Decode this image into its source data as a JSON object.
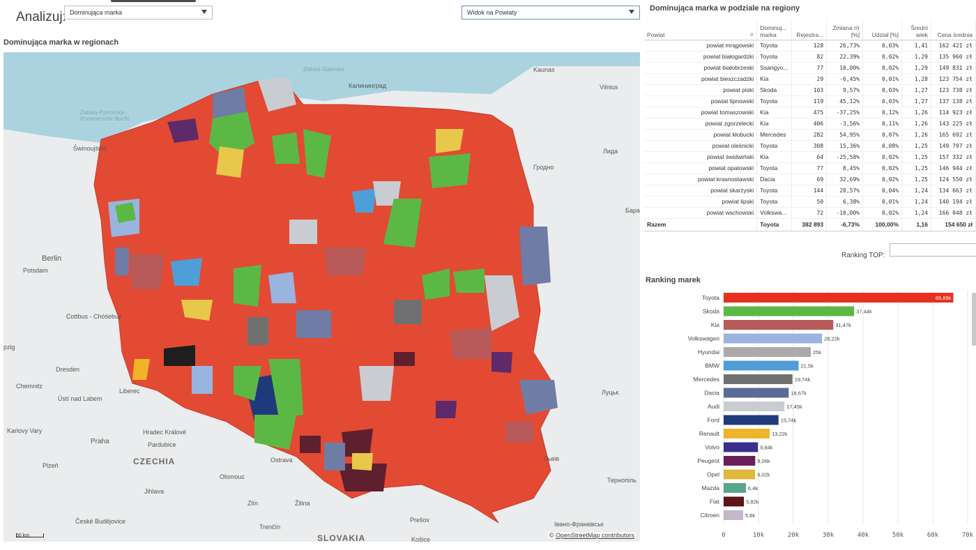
{
  "header": {
    "analyze_label": "Analizuj:",
    "select_measure": "Dominująca marka",
    "select_view": "Widok na Powiaty"
  },
  "map": {
    "title": "Dominująca marka w regionach",
    "labels": {
      "kaunas": "Kaunas",
      "vilnius": "Vilnius",
      "kaliningrad": "Калининград",
      "zatoka": "Zatoka Gdańska",
      "zatoka2": "Калининград",
      "pomeranian": "Zatoka Pomorska - Pommersche Bucht",
      "swinoujscie": "Świnoujście",
      "lida": "Лида",
      "grodno": "Гродно",
      "berlin": "Berlin",
      "potsdam": "Potsdam",
      "cottbus": "Cottbus - Chóśebuz",
      "leipzig": "pzig",
      "dresden": "Dresden",
      "chemnitz": "Chemnitz",
      "usti": "Ústí nad Labem",
      "liberec": "Liberec",
      "karlovy": "Karlovy Vary",
      "praha": "Praha",
      "hradec": "Hradec Králové",
      "pardubice": "Pardubice",
      "czechia": "CZECHIA",
      "plzen": "Plzeň",
      "olomouc": "Olomouc",
      "ostrava": "Ostrava",
      "jihlava": "Jihlava",
      "zlin": "Zlín",
      "zilina": "Žilina",
      "budejovice": "České Budějovice",
      "trencin": "Trenčín",
      "slovakia": "SLOVAKIA",
      "kosice": "Košice",
      "presov": "Prešov",
      "lutsk": "Луцьк",
      "lviv": "Львів",
      "ternopil": "Тернопіль",
      "ivano": "Івано-Франківськ",
      "bara": "Бара"
    },
    "scale": "50 km",
    "attribution_prefix": "© ",
    "attribution_link": "OpenStreetMap contributors"
  },
  "table": {
    "title": "Dominująca marka w podziale na regiony",
    "headers": [
      "Powiat",
      "Dominuj... marka",
      "Rejestra...",
      "Zmiana r/r [%]",
      "Udział [%]",
      "Średni wiek",
      "Cena średnia"
    ],
    "rows": [
      [
        "powiat mrągowski",
        "Toyota",
        "128",
        "26,73%",
        "0,03%",
        "1,41",
        "162 421 zł"
      ],
      [
        "powiat białogardzki",
        "Toyota",
        "82",
        "22,39%",
        "0,02%",
        "1,29",
        "135 960 zł"
      ],
      [
        "powiat białobrzeski",
        "Ssangyo...",
        "77",
        "10,00%",
        "0,02%",
        "1,29",
        "149 831 zł"
      ],
      [
        "powiat bieszczadzki",
        "Kia",
        "29",
        "-6,45%",
        "0,01%",
        "1,28",
        "123 754 zł"
      ],
      [
        "powiat piski",
        "Skoda",
        "103",
        "9,57%",
        "0,03%",
        "1,27",
        "123 738 zł"
      ],
      [
        "powiat lipnowski",
        "Toyota",
        "119",
        "45,12%",
        "0,03%",
        "1,27",
        "137 138 zł"
      ],
      [
        "powiat tomaszowski",
        "Kia",
        "475",
        "-37,25%",
        "0,12%",
        "1,26",
        "114 923 zł"
      ],
      [
        "powiat zgorzelecki",
        "Kia",
        "406",
        "-3,56%",
        "0,11%",
        "1,26",
        "143 225 zł"
      ],
      [
        "powiat kłobucki",
        "Mercedes",
        "282",
        "54,95%",
        "0,07%",
        "1,26",
        "165 692 zł"
      ],
      [
        "powiat oleśnicki",
        "Toyota",
        "308",
        "15,36%",
        "0,08%",
        "1,25",
        "149 797 zł"
      ],
      [
        "powiat świdwiński",
        "Kia",
        "64",
        "-25,58%",
        "0,02%",
        "1,25",
        "157 332 zł"
      ],
      [
        "powiat opatowski",
        "Toyota",
        "77",
        "8,45%",
        "0,02%",
        "1,25",
        "146 944 zł"
      ],
      [
        "powiat krasnostawski",
        "Dacia",
        "69",
        "32,69%",
        "0,02%",
        "1,25",
        "124 550 zł"
      ],
      [
        "powiat skarżyski",
        "Toyota",
        "144",
        "28,57%",
        "0,04%",
        "1,24",
        "134 663 zł"
      ],
      [
        "powiat lipski",
        "Toyota",
        "50",
        "6,38%",
        "0,01%",
        "1,24",
        "140 194 zł"
      ],
      [
        "powiat wschowski",
        "Volkswa...",
        "72",
        "-10,00%",
        "0,02%",
        "1,24",
        "166 048 zł"
      ]
    ],
    "total": [
      "Razem",
      "Toyota",
      "382 893",
      "-6,73%",
      "100,00%",
      "1,16",
      "154 650 zł"
    ]
  },
  "ranking_top": {
    "label": "Ranking TOP:",
    "value": ""
  },
  "chart_data": {
    "type": "bar",
    "title": "Ranking marek",
    "orientation": "horizontal",
    "categories": [
      "Toyota",
      "Skoda",
      "Kia",
      "Volkswagen",
      "Hyundai",
      "BMW",
      "Mercedes",
      "Dacia",
      "Audi",
      "Ford",
      "Renault",
      "Volvo",
      "Peugeot",
      "Opel",
      "Mazda",
      "Fiat",
      "Citroen"
    ],
    "values": [
      65890,
      37440,
      31470,
      28220,
      25000,
      21500,
      19740,
      18670,
      17450,
      15740,
      13220,
      9840,
      9060,
      9020,
      6400,
      5820,
      5600
    ],
    "value_labels": [
      "65,89k",
      "37,44k",
      "31,47k",
      "28,22k",
      "25k",
      "21,5k",
      "19,74k",
      "18,67k",
      "17,45k",
      "15,74k",
      "13,22k",
      "9,84k",
      "9,06k",
      "9,02k",
      "6,4k",
      "5,82k",
      "5,6k"
    ],
    "colors": [
      "#e8301e",
      "#5cb845",
      "#b85a5a",
      "#9ab4e0",
      "#aaaaaa",
      "#4f9ed8",
      "#707070",
      "#5b6b99",
      "#c9cdd2",
      "#1f3a7a",
      "#f0b428",
      "#3b2e8c",
      "#6b1f5a",
      "#e0b83a",
      "#5aa58a",
      "#5e1418",
      "#c2b8c8"
    ],
    "xlim": [
      0,
      70000
    ],
    "xticks": [
      "0",
      "10k",
      "20k",
      "30k",
      "40k",
      "50k",
      "60k",
      "70k"
    ]
  }
}
